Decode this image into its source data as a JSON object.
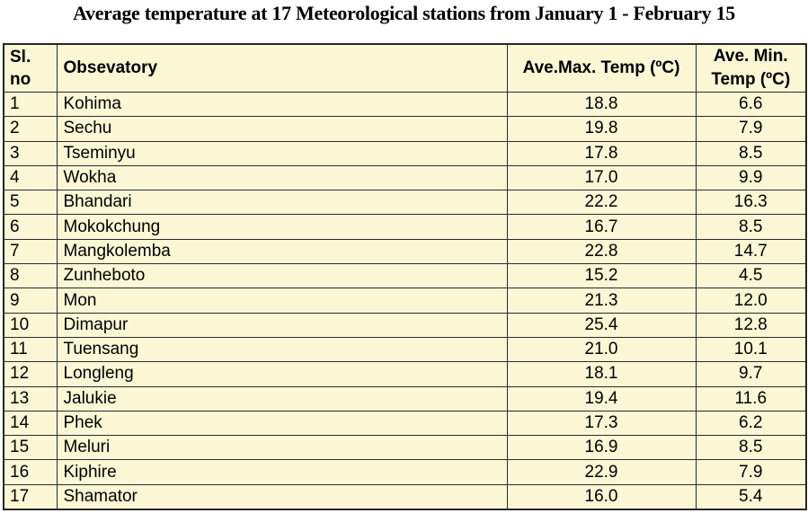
{
  "page_title": "Average temperature at 17 Meteorological stations from January 1 - February 15",
  "colors": {
    "page_background": "#FFFFFF",
    "table_background": "#FBF7D5",
    "grid_border": "#2B2B2B",
    "text": "#000000"
  },
  "chart_data": {
    "type": "table",
    "title": "Average temperature at 17 Meteorological stations from January 1 - February 15",
    "columns": [
      "Sl. no",
      "Obsevatory",
      "Ave.Max. Temp (ºC)",
      "Ave. Min. Temp (ºC)"
    ],
    "columns_note": "grid on, header row bold, body rows pale yellow background",
    "rows": [
      {
        "no": "1",
        "observatory": "Kohima",
        "max": "18.8",
        "min": "6.6"
      },
      {
        "no": "2",
        "observatory": "Sechu",
        "max": "19.8",
        "min": "7.9"
      },
      {
        "no": "3",
        "observatory": "Tseminyu",
        "max": "17.8",
        "min": "8.5"
      },
      {
        "no": "4",
        "observatory": "Wokha",
        "max": "17.0",
        "min": "9.9"
      },
      {
        "no": "5",
        "observatory": "Bhandari",
        "max": "22.2",
        "min": "16.3"
      },
      {
        "no": "6",
        "observatory": "Mokokchung",
        "max": "16.7",
        "min": "8.5"
      },
      {
        "no": "7",
        "observatory": "Mangkolemba",
        "max": "22.8",
        "min": "14.7"
      },
      {
        "no": "8",
        "observatory": "Zunheboto",
        "max": "15.2",
        "min": "4.5"
      },
      {
        "no": "9",
        "observatory": "Mon",
        "max": "21.3",
        "min": "12.0"
      },
      {
        "no": "10",
        "observatory": "Dimapur",
        "max": "25.4",
        "min": "12.8"
      },
      {
        "no": "11",
        "observatory": "Tuensang",
        "max": "21.0",
        "min": "10.1"
      },
      {
        "no": "12",
        "observatory": "Longleng",
        "max": "18.1",
        "min": "9.7"
      },
      {
        "no": "13",
        "observatory": "Jalukie",
        "max": "19.4",
        "min": "11.6"
      },
      {
        "no": "14",
        "observatory": "Phek",
        "max": "17.3",
        "min": "6.2"
      },
      {
        "no": "15",
        "observatory": "Meluri",
        "max": "16.9",
        "min": "8.5"
      },
      {
        "no": "16",
        "observatory": "Kiphire",
        "max": "22.9",
        "min": "7.9"
      },
      {
        "no": "17",
        "observatory": "Shamator",
        "max": "16.0",
        "min": "5.4"
      }
    ]
  }
}
